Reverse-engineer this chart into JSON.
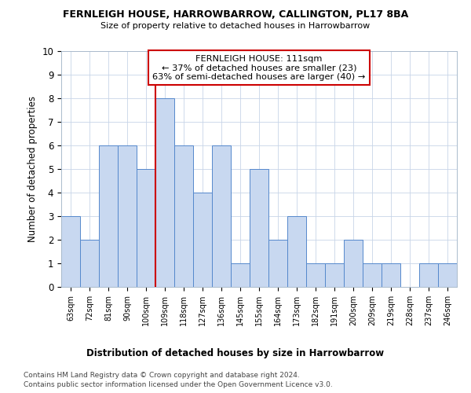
{
  "title": "FERNLEIGH HOUSE, HARROWBARROW, CALLINGTON, PL17 8BA",
  "subtitle": "Size of property relative to detached houses in Harrowbarrow",
  "xlabel": "Distribution of detached houses by size in Harrowbarrow",
  "ylabel": "Number of detached properties",
  "categories": [
    "63sqm",
    "72sqm",
    "81sqm",
    "90sqm",
    "100sqm",
    "109sqm",
    "118sqm",
    "127sqm",
    "136sqm",
    "145sqm",
    "155sqm",
    "164sqm",
    "173sqm",
    "182sqm",
    "191sqm",
    "200sqm",
    "209sqm",
    "219sqm",
    "228sqm",
    "237sqm",
    "246sqm"
  ],
  "values": [
    3,
    2,
    6,
    6,
    5,
    8,
    6,
    4,
    6,
    1,
    5,
    2,
    3,
    1,
    1,
    2,
    1,
    1,
    0,
    1,
    1
  ],
  "bar_color": "#c8d8f0",
  "bar_edge_color": "#5588cc",
  "highlight_bar_index": 5,
  "highlight_line_color": "#cc0000",
  "ylim": [
    0,
    10
  ],
  "yticks": [
    0,
    1,
    2,
    3,
    4,
    5,
    6,
    7,
    8,
    9,
    10
  ],
  "annotation_title": "FERNLEIGH HOUSE: 111sqm",
  "annotation_line1": "← 37% of detached houses are smaller (23)",
  "annotation_line2": "63% of semi-detached houses are larger (40) →",
  "annotation_box_color": "#ffffff",
  "annotation_box_edge_color": "#cc0000",
  "footer1": "Contains HM Land Registry data © Crown copyright and database right 2024.",
  "footer2": "Contains public sector information licensed under the Open Government Licence v3.0.",
  "background_color": "#ffffff",
  "grid_color": "#c8d4e8"
}
